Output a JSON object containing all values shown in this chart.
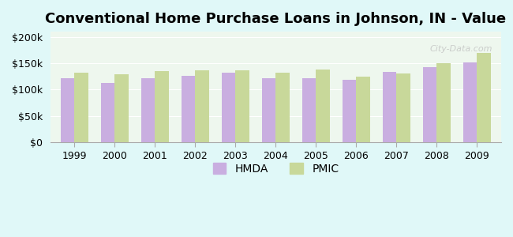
{
  "title": "Conventional Home Purchase Loans in Johnson, IN - Value",
  "years": [
    1999,
    2000,
    2001,
    2002,
    2003,
    2004,
    2005,
    2006,
    2007,
    2008,
    2009
  ],
  "hmda": [
    122000,
    112000,
    122000,
    126000,
    132000,
    122000,
    121000,
    119000,
    133000,
    143000,
    151000
  ],
  "pmic": [
    132000,
    129000,
    135000,
    137000,
    137000,
    132000,
    138000,
    125000,
    131000,
    150000,
    170000
  ],
  "hmda_color": "#c9aee0",
  "pmic_color": "#c8d89a",
  "background_color": "#e0f8f8",
  "plot_bg_top": "#f0f8f0",
  "plot_bg_bottom": "#e8f8e0",
  "ylabel_ticks": [
    "$0",
    "$50k",
    "$100k",
    "$150k",
    "$200k"
  ],
  "ytick_vals": [
    0,
    50000,
    100000,
    150000,
    200000
  ],
  "ylim": [
    0,
    210000
  ],
  "bar_width": 0.35,
  "title_fontsize": 13,
  "tick_fontsize": 9,
  "legend_fontsize": 10,
  "watermark": "City-Data.com"
}
